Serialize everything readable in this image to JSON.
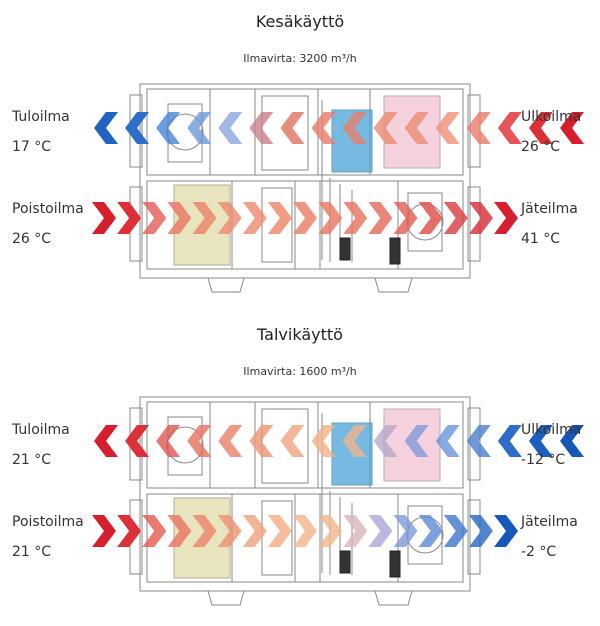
{
  "panels": [
    {
      "title": "Kesäkäyttö",
      "airflow": "Ilmavirta: 3200 m³/h",
      "supply": {
        "label": "Tuloilma",
        "temp": "17 °C"
      },
      "outdoor": {
        "label": "Ulkoilma",
        "temp": "26 °C"
      },
      "extract": {
        "label": "Poistoilma",
        "temp": "26 °C"
      },
      "exhaust": {
        "label": "Jäteilma",
        "temp": "41 °C"
      },
      "top_arrow_colors": [
        "#1e63c0",
        "#2c6fca",
        "#4a85d4",
        "#6c98da",
        "#8aa9dc",
        "#c9808a",
        "#e07060",
        "#e87a68",
        "#e8806c",
        "#ec8a72",
        "#ee8c74",
        "#ef9078",
        "#ec7a6a",
        "#e6545a",
        "#dc3038",
        "#d81e2c"
      ],
      "bottom_arrow_colors": [
        "#d81e2c",
        "#dd3038",
        "#e55a56",
        "#e87460",
        "#ec8266",
        "#ee8a6e",
        "#ee8a6e",
        "#ec8468",
        "#ea7c62",
        "#e8765e",
        "#e6705a",
        "#e46856",
        "#e25e50",
        "#df4a46",
        "#db3a3e",
        "#d82a34",
        "#d6202e"
      ]
    },
    {
      "title": "Talvikäyttö",
      "airflow": "Ilmavirta: 1600 m³/h",
      "supply": {
        "label": "Tuloilma",
        "temp": "21 °C"
      },
      "outdoor": {
        "label": "Ulkoilma",
        "temp": "-12 °C"
      },
      "extract": {
        "label": "Poistoilma",
        "temp": "21 °C"
      },
      "exhaust": {
        "label": "Jäteilma",
        "temp": "-2 °C"
      },
      "top_arrow_colors": [
        "#d81e2c",
        "#dc3038",
        "#e25650",
        "#e6705c",
        "#e88068",
        "#eb9474",
        "#efa47e",
        "#f2b088",
        "#efb48e",
        "#b6a8c8",
        "#7f9ad8",
        "#6a94dc",
        "#4a7fd0",
        "#2e6cc8",
        "#1d5fbe",
        "#1557b8"
      ],
      "bottom_arrow_colors": [
        "#d81e2c",
        "#dc3038",
        "#e4584e",
        "#e87460",
        "#ec8466",
        "#ee9070",
        "#f0a07a",
        "#f2ac84",
        "#f3b48a",
        "#f0b68e",
        "#d8b4b8",
        "#a9a8d4",
        "#7e9ad8",
        "#5c8ad4",
        "#3f76cc",
        "#2766c4",
        "#1558ba"
      ]
    }
  ]
}
